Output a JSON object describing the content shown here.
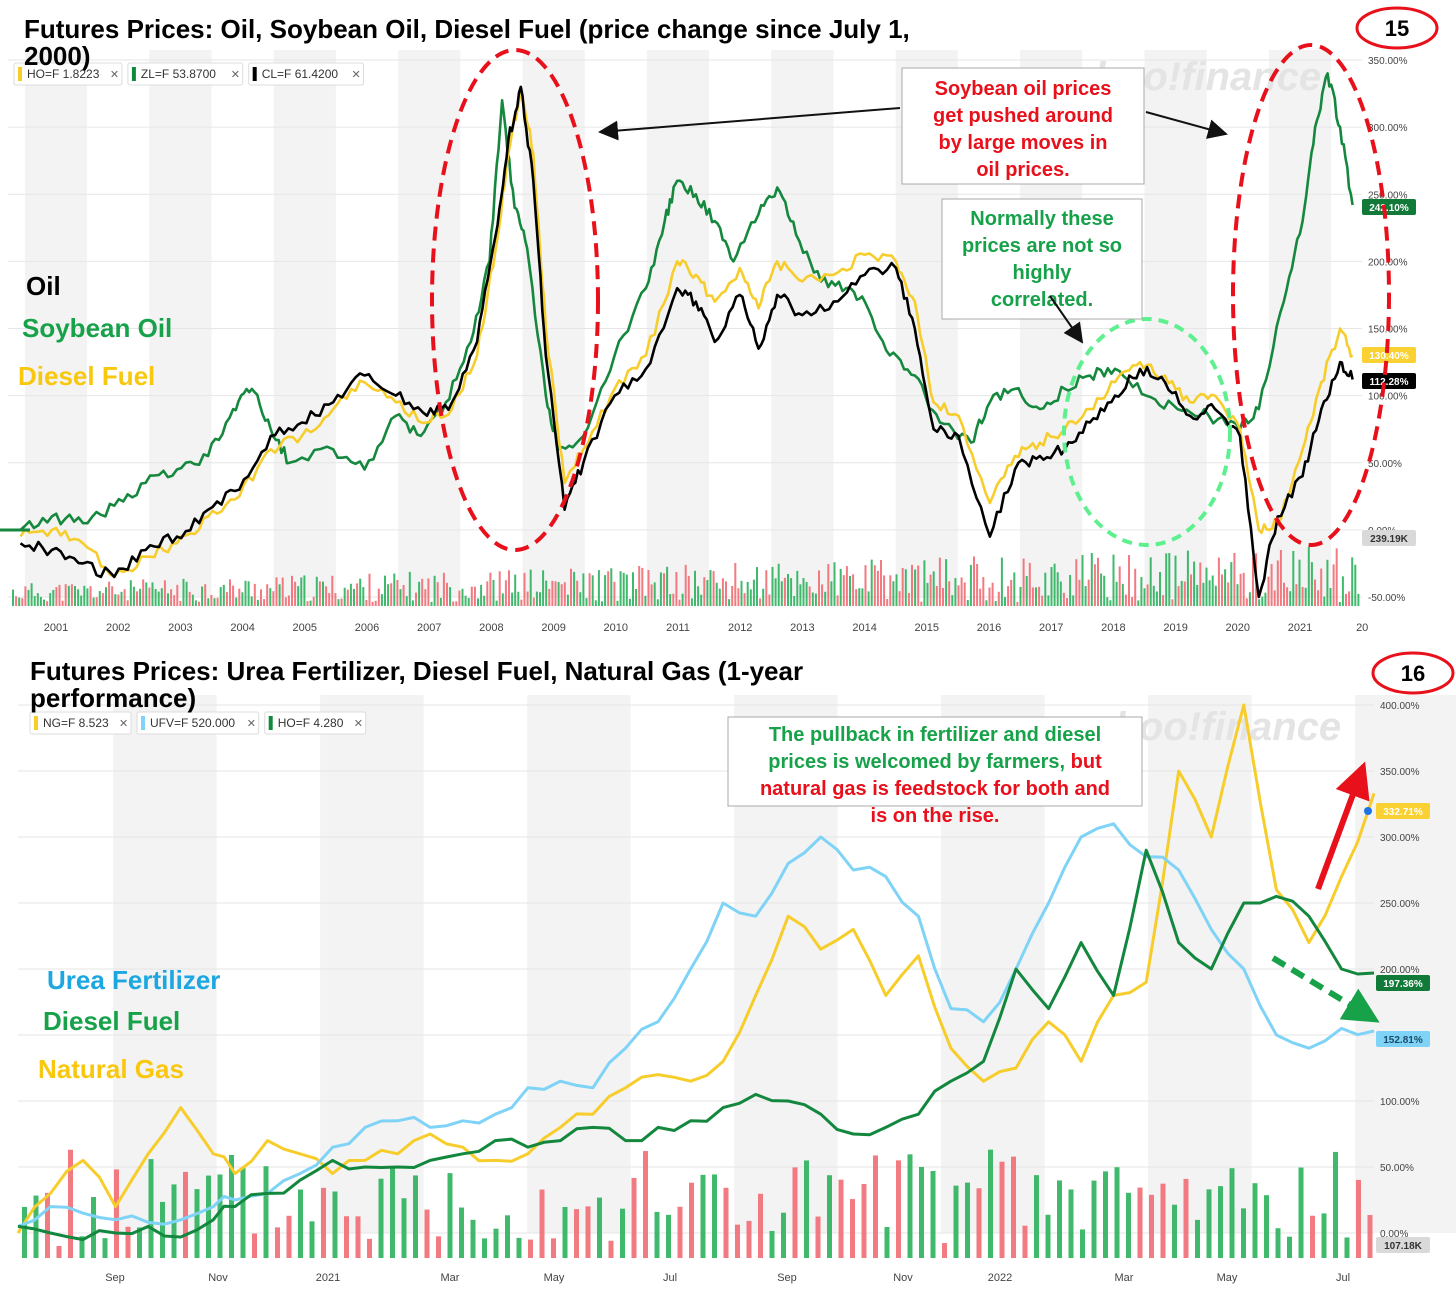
{
  "chart_data": [
    {
      "type": "line",
      "title": "Futures Prices: Oil, Soybean Oil, Diesel Fuel (price change since July 1, 2000)",
      "page_number": "15",
      "watermark": "yahoo!finance",
      "y_unit": "percent change",
      "ylim": [
        -50,
        350
      ],
      "y_ticks": [
        "350.00%",
        "300.00%",
        "250.00%",
        "200.00%",
        "150.00%",
        "100.00%",
        "50.00%",
        "0.00%",
        "-50.00%"
      ],
      "x_ticks": [
        "2001",
        "2002",
        "2003",
        "2004",
        "2005",
        "2006",
        "2007",
        "2008",
        "2009",
        "2010",
        "2011",
        "2012",
        "2013",
        "2014",
        "2015",
        "2016",
        "2017",
        "2018",
        "2019",
        "2020",
        "2021",
        "20"
      ],
      "legend_chips": [
        {
          "label": "HO=F 1.8223",
          "color": "#f7cd2c"
        },
        {
          "label": "ZL=F 53.8700",
          "color": "#0f8a3c"
        },
        {
          "label": "CL=F 61.4200",
          "color": "#000000"
        }
      ],
      "series_labels": [
        {
          "text": "Oil",
          "color": "#000000"
        },
        {
          "text": "Soybean Oil",
          "color": "#17a24a"
        },
        {
          "text": "Diesel Fuel",
          "color": "#f9c80e"
        }
      ],
      "end_badges": [
        {
          "text": "242.10%",
          "bg": "#127a39",
          "fg": "#ffffff"
        },
        {
          "text": "130.40%",
          "bg": "#f9d132",
          "fg": "#ffffff"
        },
        {
          "text": "112.28%",
          "bg": "#000000",
          "fg": "#ffffff"
        },
        {
          "text": "239.19K",
          "bg": "#d9d9d9",
          "fg": "#333333"
        }
      ],
      "annotations": [
        {
          "lines": [
            "Soybean oil prices",
            "get pushed around",
            "by large moves in",
            "oil prices."
          ],
          "color": "#e8101b"
        },
        {
          "lines": [
            "Normally these",
            "prices are not so",
            "highly",
            "correlated."
          ],
          "color": "#17a24a"
        }
      ],
      "series": [
        {
          "name": "Soybean Oil",
          "color": "#15883e",
          "x": [
            2000.5,
            2001.0,
            2001.5,
            2002.0,
            2002.5,
            2003.0,
            2003.5,
            2003.9,
            2004.2,
            2004.5,
            2004.8,
            2005.5,
            2006.0,
            2006.5,
            2006.9,
            2007.3,
            2007.7,
            2008.0,
            2008.2,
            2008.4,
            2008.6,
            2008.9,
            2009.1,
            2009.5,
            2010.0,
            2010.5,
            2010.8,
            2011.0,
            2011.3,
            2011.6,
            2011.9,
            2012.3,
            2012.6,
            2012.9,
            2013.3,
            2013.7,
            2014.0,
            2014.4,
            2014.8,
            2015.2,
            2015.7,
            2016.0,
            2016.4,
            2016.8,
            2017.2,
            2017.6,
            2018.0,
            2018.5,
            2019.0,
            2019.5,
            2020.0,
            2020.3,
            2020.7,
            2021.0,
            2021.2,
            2021.4,
            2021.6,
            2021.8
          ],
          "y": [
            0,
            10,
            5,
            18,
            35,
            45,
            55,
            90,
            105,
            75,
            50,
            60,
            45,
            85,
            70,
            95,
            140,
            200,
            320,
            240,
            210,
            100,
            60,
            70,
            130,
            180,
            230,
            260,
            250,
            230,
            200,
            235,
            255,
            220,
            185,
            180,
            170,
            130,
            115,
            80,
            65,
            95,
            105,
            90,
            105,
            115,
            120,
            100,
            90,
            85,
            75,
            90,
            170,
            230,
            300,
            340,
            300,
            242
          ]
        },
        {
          "name": "Diesel Fuel",
          "color": "#f7cd2c",
          "x": [
            2000.5,
            2001.0,
            2001.5,
            2002.0,
            2002.5,
            2003.0,
            2003.5,
            2004.0,
            2004.5,
            2005.0,
            2005.5,
            2006.0,
            2006.5,
            2007.0,
            2007.4,
            2007.8,
            2008.1,
            2008.3,
            2008.5,
            2008.7,
            2008.9,
            2009.2,
            2009.5,
            2010.0,
            2010.5,
            2011.0,
            2011.3,
            2011.6,
            2012.0,
            2012.3,
            2012.6,
            2013.0,
            2013.5,
            2014.0,
            2014.5,
            2014.8,
            2015.1,
            2015.5,
            2016.0,
            2016.4,
            2016.8,
            2017.2,
            2017.6,
            2018.0,
            2018.4,
            2018.8,
            2019.2,
            2019.6,
            2020.0,
            2020.3,
            2020.6,
            2021.0,
            2021.3,
            2021.6,
            2021.8
          ],
          "y": [
            -5,
            0,
            -10,
            -35,
            -20,
            -10,
            10,
            25,
            60,
            70,
            90,
            110,
            95,
            80,
            90,
            130,
            210,
            280,
            330,
            280,
            150,
            35,
            60,
            105,
            130,
            200,
            190,
            170,
            195,
            165,
            200,
            185,
            190,
            205,
            200,
            170,
            95,
            85,
            20,
            55,
            65,
            75,
            90,
            110,
            125,
            115,
            95,
            100,
            75,
            0,
            5,
            60,
            110,
            150,
            130
          ]
        },
        {
          "name": "Oil",
          "color": "#000000",
          "x": [
            2000.5,
            2001.0,
            2001.5,
            2002.0,
            2002.5,
            2003.0,
            2003.5,
            2004.0,
            2004.5,
            2005.0,
            2005.5,
            2006.0,
            2006.5,
            2007.0,
            2007.4,
            2007.8,
            2008.1,
            2008.3,
            2008.5,
            2008.7,
            2008.9,
            2009.2,
            2009.5,
            2010.0,
            2010.5,
            2011.0,
            2011.3,
            2011.6,
            2012.0,
            2012.3,
            2012.6,
            2013.0,
            2013.5,
            2014.0,
            2014.5,
            2014.8,
            2015.1,
            2015.5,
            2016.0,
            2016.4,
            2016.8,
            2017.2,
            2017.6,
            2018.0,
            2018.4,
            2018.8,
            2019.2,
            2019.6,
            2020.0,
            2020.3,
            2020.6,
            2021.0,
            2021.3,
            2021.6,
            2021.8
          ],
          "y": [
            -10,
            -15,
            -25,
            -35,
            -15,
            -5,
            15,
            30,
            70,
            80,
            95,
            115,
            100,
            85,
            95,
            140,
            220,
            290,
            330,
            260,
            130,
            15,
            50,
            100,
            120,
            180,
            170,
            140,
            175,
            135,
            175,
            160,
            170,
            190,
            195,
            150,
            75,
            70,
            -5,
            45,
            55,
            60,
            80,
            100,
            120,
            110,
            85,
            90,
            70,
            -50,
            10,
            40,
            90,
            125,
            112
          ]
        }
      ]
    },
    {
      "type": "line",
      "title": "Futures Prices: Urea Fertilizer, Diesel Fuel, Natural Gas (1-year performance)",
      "page_number": "16",
      "watermark": "yahoo!finance",
      "y_unit": "percent change",
      "ylim": [
        0,
        400
      ],
      "y_ticks": [
        "400.00%",
        "350.00%",
        "300.00%",
        "250.00%",
        "200.00%",
        "150.00%",
        "100.00%",
        "50.00%",
        "0.00%"
      ],
      "x_ticks": [
        "Sep",
        "Nov",
        "2021",
        "Mar",
        "May",
        "Jul",
        "Sep",
        "Nov",
        "2022",
        "Mar",
        "May",
        "Jul"
      ],
      "legend_chips": [
        {
          "label": "NG=F 8.523",
          "color": "#f7cd2c"
        },
        {
          "label": "UFV=F 520.000",
          "color": "#7fd3f7"
        },
        {
          "label": "HO=F 4.280",
          "color": "#0f8a3c"
        }
      ],
      "series_labels": [
        {
          "text": "Urea Fertilizer",
          "color": "#1ca7e0"
        },
        {
          "text": "Diesel Fuel",
          "color": "#17a24a"
        },
        {
          "text": "Natural Gas",
          "color": "#f9c80e"
        }
      ],
      "end_badges": [
        {
          "text": "332.71%",
          "bg": "#f9d132",
          "fg": "#ffffff"
        },
        {
          "text": "197.36%",
          "bg": "#127a39",
          "fg": "#ffffff"
        },
        {
          "text": "152.81%",
          "bg": "#7fd3f7",
          "fg": "#1b4b66"
        },
        {
          "text": "107.18K",
          "bg": "#d9d9d9",
          "fg": "#333333"
        }
      ],
      "annotations": [
        {
          "lines": [
            "The pullback in fertilizer and diesel",
            "prices is welcomed by farmers, but",
            "natural gas is feedstock for both and",
            "is on the rise."
          ],
          "color": "#17a24a",
          "red_tail": [
            "but",
            "natural gas is feedstock for both and",
            "is on the rise."
          ]
        }
      ],
      "series": [
        {
          "name": "Natural Gas",
          "color": "#f7cd2c",
          "x": [
            0,
            0.3,
            0.6,
            0.9,
            1.2,
            1.5,
            1.8,
            2.0,
            2.3,
            2.6,
            2.9,
            3.2,
            3.5,
            3.8,
            4.1,
            4.4,
            4.7,
            5.0,
            5.3,
            5.6,
            5.9,
            6.2,
            6.5,
            6.8,
            7.1,
            7.4,
            7.7,
            8.0,
            8.3,
            8.6,
            8.9,
            9.2,
            9.5,
            9.8,
            10.1,
            10.4,
            10.7,
            11.0,
            11.3,
            11.6,
            11.9,
            12.2,
            12.5
          ],
          "y": [
            0,
            30,
            55,
            20,
            60,
            95,
            60,
            45,
            70,
            60,
            45,
            55,
            60,
            75,
            65,
            55,
            60,
            80,
            90,
            110,
            120,
            115,
            130,
            180,
            240,
            215,
            230,
            180,
            210,
            140,
            115,
            125,
            160,
            130,
            180,
            190,
            350,
            300,
            400,
            260,
            220,
            270,
            333
          ]
        },
        {
          "name": "Urea Fertilizer",
          "color": "#7fd3f7",
          "x": [
            0,
            0.3,
            0.6,
            0.9,
            1.2,
            1.5,
            1.8,
            2.0,
            2.3,
            2.6,
            2.9,
            3.2,
            3.5,
            3.8,
            4.1,
            4.4,
            4.7,
            5.0,
            5.3,
            5.6,
            5.9,
            6.2,
            6.5,
            6.8,
            7.1,
            7.4,
            7.7,
            8.0,
            8.3,
            8.6,
            8.9,
            9.2,
            9.5,
            9.8,
            10.1,
            10.4,
            10.7,
            11.0,
            11.3,
            11.6,
            11.9,
            12.2,
            12.5
          ],
          "y": [
            5,
            20,
            15,
            10,
            8,
            10,
            20,
            25,
            30,
            45,
            65,
            80,
            85,
            80,
            85,
            90,
            110,
            115,
            110,
            140,
            160,
            200,
            250,
            240,
            280,
            300,
            275,
            270,
            240,
            170,
            160,
            200,
            250,
            300,
            310,
            285,
            275,
            230,
            200,
            150,
            140,
            155,
            153
          ]
        },
        {
          "name": "Diesel Fuel",
          "color": "#12873d",
          "x": [
            0,
            0.3,
            0.6,
            0.9,
            1.2,
            1.5,
            1.8,
            2.0,
            2.3,
            2.6,
            2.9,
            3.2,
            3.5,
            3.8,
            4.1,
            4.4,
            4.7,
            5.0,
            5.3,
            5.6,
            5.9,
            6.2,
            6.5,
            6.8,
            7.1,
            7.4,
            7.7,
            8.0,
            8.3,
            8.6,
            8.9,
            9.2,
            9.5,
            9.8,
            10.1,
            10.4,
            10.7,
            11.0,
            11.3,
            11.6,
            11.9,
            12.2,
            12.5
          ],
          "y": [
            5,
            0,
            -5,
            0,
            5,
            -3,
            10,
            20,
            30,
            40,
            55,
            50,
            50,
            55,
            60,
            70,
            65,
            70,
            80,
            70,
            80,
            85,
            95,
            105,
            100,
            90,
            75,
            80,
            90,
            115,
            130,
            200,
            170,
            220,
            180,
            290,
            220,
            200,
            250,
            255,
            240,
            200,
            197
          ]
        }
      ]
    }
  ]
}
